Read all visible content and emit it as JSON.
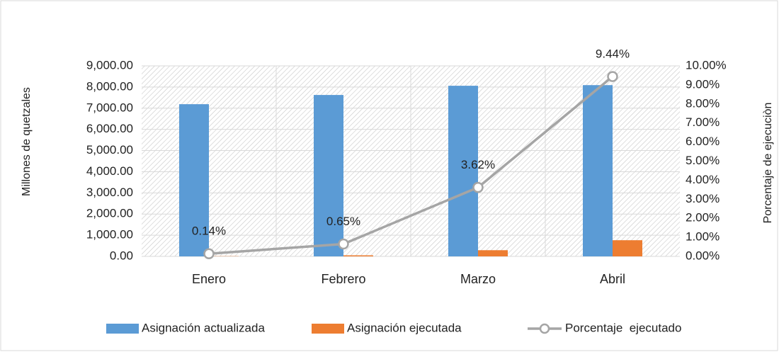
{
  "chart_data": {
    "type": "bar",
    "categories": [
      "Enero",
      "Febrero",
      "Marzo",
      "Abril"
    ],
    "series": [
      {
        "name": "Asignación actualizada",
        "color": "#5b9bd5",
        "values": [
          7190,
          7625,
          8060,
          8090
        ]
      },
      {
        "name": "Asignación ejecutada",
        "color": "#ed7d31",
        "values": [
          10,
          50,
          292,
          764
        ]
      },
      {
        "name": "Porcentaje  ejecutado",
        "color": "#a5a5a5",
        "type": "line",
        "axis": "y2",
        "values": [
          0.14,
          0.65,
          3.62,
          9.44
        ],
        "value_labels": [
          "0.14%",
          "0.65%",
          "3.62%",
          "9.44%"
        ]
      }
    ],
    "ylabel": "Millones de quetzales",
    "y2label": "Porcentaje de ejecuciòn",
    "ylim": [
      0,
      9000
    ],
    "yticks": [
      {
        "value": 0,
        "label": "0.00"
      },
      {
        "value": 1000,
        "label": "1,000.00"
      },
      {
        "value": 2000,
        "label": "2,000.00"
      },
      {
        "value": 3000,
        "label": "3,000.00"
      },
      {
        "value": 4000,
        "label": "4,000.00"
      },
      {
        "value": 5000,
        "label": "5,000.00"
      },
      {
        "value": 6000,
        "label": "6,000.00"
      },
      {
        "value": 7000,
        "label": "7,000.00"
      },
      {
        "value": 8000,
        "label": "8,000.00"
      },
      {
        "value": 9000,
        "label": "9,000.00"
      }
    ],
    "y2lim": [
      0,
      10
    ],
    "y2ticks": [
      {
        "value": 0,
        "label": "0.00%"
      },
      {
        "value": 1,
        "label": "1.00%"
      },
      {
        "value": 2,
        "label": "2.00%"
      },
      {
        "value": 3,
        "label": "3.00%"
      },
      {
        "value": 4,
        "label": "4.00%"
      },
      {
        "value": 5,
        "label": "5.00%"
      },
      {
        "value": 6,
        "label": "6.00%"
      },
      {
        "value": 7,
        "label": "7.00%"
      },
      {
        "value": 8,
        "label": "8.00%"
      },
      {
        "value": 9,
        "label": "9.00%"
      },
      {
        "value": 10,
        "label": "10.00%"
      }
    ],
    "grid": true,
    "legend": "bottom"
  }
}
